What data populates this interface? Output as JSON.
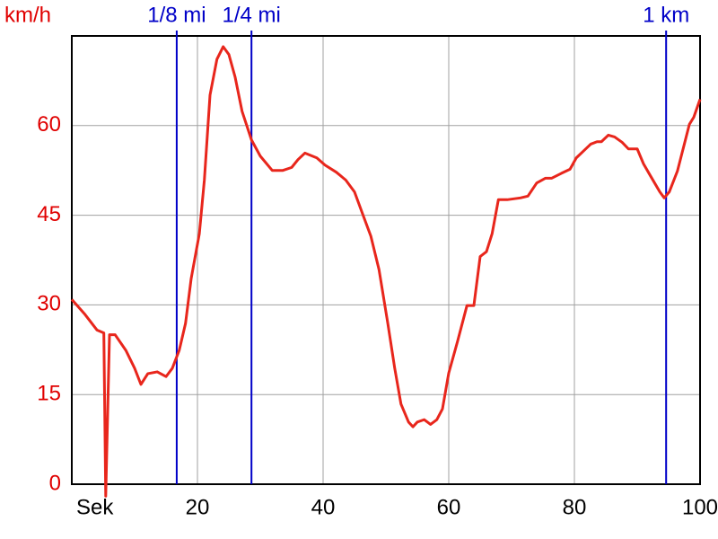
{
  "chart_data": {
    "type": "line",
    "y_label": "km/h",
    "x_label": "Sek",
    "xlim": [
      0,
      100
    ],
    "xticks": [
      20,
      40,
      60,
      80,
      100
    ],
    "ylim": [
      0,
      75
    ],
    "yticks": [
      0,
      15,
      30,
      45,
      60
    ],
    "grid": true,
    "markers": [
      {
        "label": "1/8 mi",
        "x": 16.7,
        "color": "#0000c8"
      },
      {
        "label": "1/4 mi",
        "x": 28.6,
        "color": "#0000c8"
      },
      {
        "label": "1 km",
        "x": 94.6,
        "color": "#0000c8"
      }
    ],
    "series": [
      {
        "color": "#e8261c",
        "x": [
          0,
          2.1,
          4,
          5.1,
          5.4,
          6,
          6.9,
          8.6,
          10,
          11,
          12.1,
          13.6,
          15,
          16,
          17.1,
          18.1,
          19,
          20.3,
          21.1,
          22,
          23.1,
          24.1,
          25,
          26,
          27.1,
          28.6,
          30,
          31.9,
          33.6,
          35,
          36,
          37.1,
          39,
          40.3,
          42.1,
          43.6,
          45,
          46.4,
          47.6,
          48.9,
          50.3,
          51.4,
          52.4,
          53.6,
          54.3,
          55,
          56.1,
          57.1,
          58.1,
          59,
          60,
          61.4,
          62.9,
          64,
          65,
          66,
          66.9,
          67.9,
          69.3,
          71.4,
          72.6,
          74,
          75.4,
          76.4,
          77.9,
          79.3,
          80.3,
          81.4,
          82.6,
          83.6,
          84.3,
          85.4,
          86.4,
          87.6,
          88.6,
          90,
          91,
          92.1,
          93.6,
          94.3,
          95.1,
          96.4,
          98.3,
          99,
          100
        ],
        "values": [
          30.9,
          28.4,
          25.8,
          25.3,
          -2,
          25,
          25,
          22.4,
          19.4,
          16.7,
          18.5,
          18.8,
          18,
          19.4,
          22.4,
          26.9,
          34.4,
          41.9,
          50.9,
          65.1,
          71.1,
          73.2,
          71.9,
          68.1,
          62.4,
          57.6,
          54.9,
          52.5,
          52.5,
          53,
          54.3,
          55.4,
          54.6,
          53.4,
          52.2,
          50.9,
          48.9,
          44.9,
          41.5,
          35.9,
          26.9,
          19.4,
          13.4,
          10.4,
          9.6,
          10.4,
          10.8,
          10,
          10.8,
          12.6,
          18.6,
          23.9,
          29.9,
          29.9,
          38.1,
          38.9,
          41.9,
          47.6,
          47.6,
          47.9,
          48.2,
          50.4,
          51.2,
          51.2,
          52,
          52.7,
          54.6,
          55.7,
          56.9,
          57.3,
          57.3,
          58.4,
          58.1,
          57.2,
          56.1,
          56.1,
          53.6,
          51.6,
          48.9,
          47.9,
          48.9,
          52.4,
          60.2,
          61.4,
          64.4
        ]
      }
    ]
  }
}
